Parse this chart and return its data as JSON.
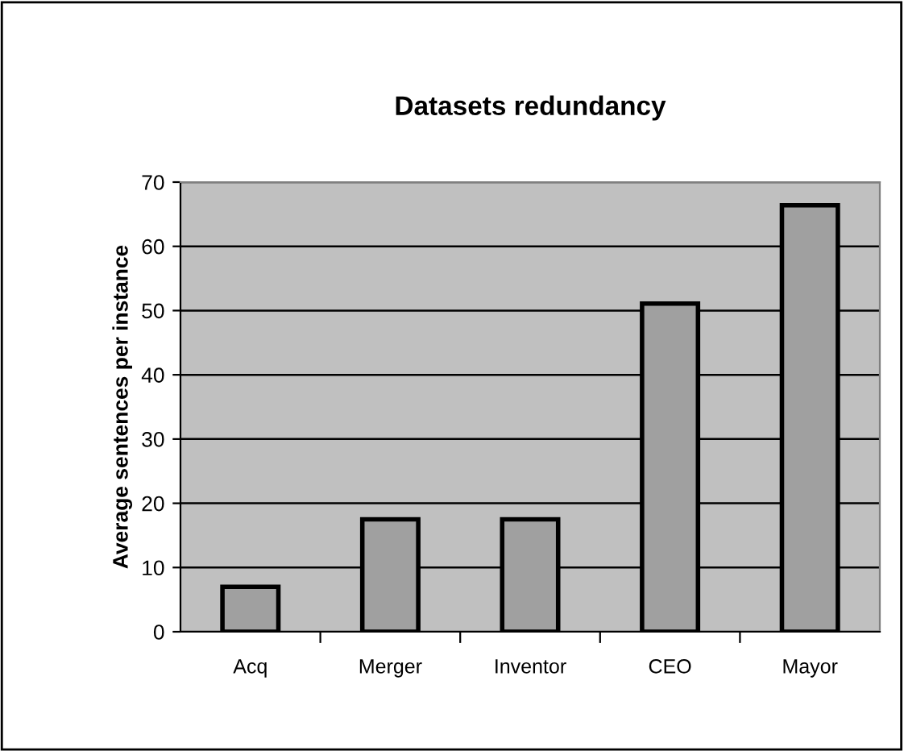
{
  "chart_data": {
    "type": "bar",
    "title": "Datasets redundancy",
    "ylabel": "Average sentences per instance",
    "categories": [
      "Acq",
      "Merger",
      "Inventor",
      "CEO",
      "Mayor"
    ],
    "values": [
      7,
      17.5,
      17.5,
      51.1,
      66.4
    ],
    "color": "#a0a0a0",
    "ylim": [
      0,
      70
    ],
    "yticks": [
      0,
      10,
      20,
      30,
      40,
      50,
      60,
      70
    ],
    "grid": "y",
    "legend": false
  }
}
